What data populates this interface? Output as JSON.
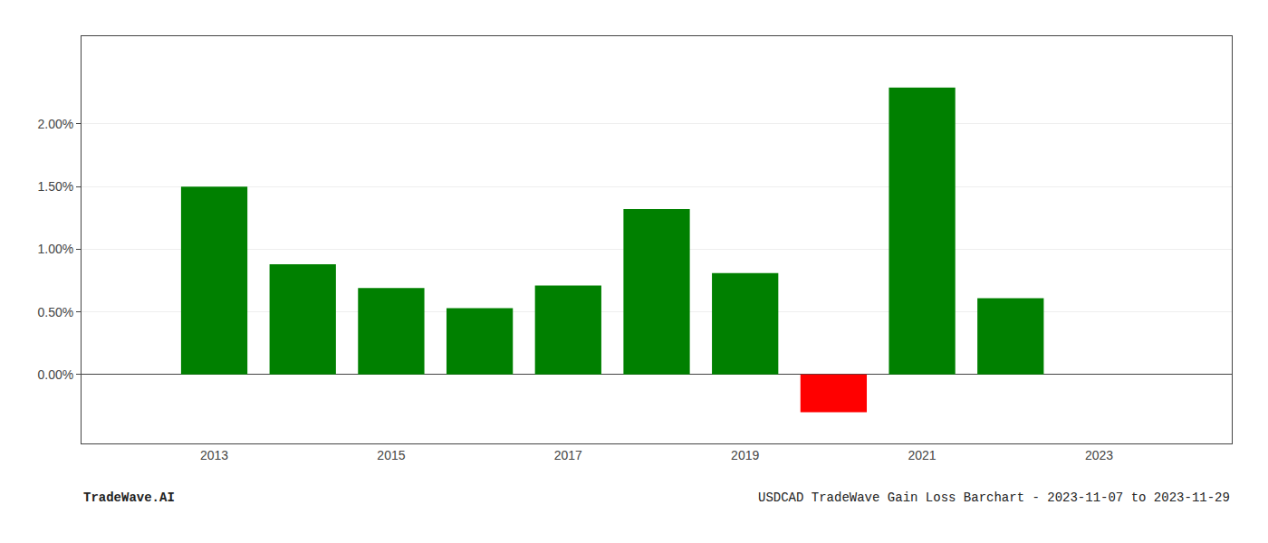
{
  "chart_data": {
    "type": "bar",
    "x": [
      2013,
      2014,
      2015,
      2016,
      2017,
      2018,
      2019,
      2020,
      2021,
      2022,
      2023
    ],
    "values": [
      0.015,
      0.0088,
      0.0069,
      0.0053,
      0.0071,
      0.0132,
      0.0081,
      -0.003,
      0.0229,
      0.0061,
      null
    ],
    "colors": [
      "#008000",
      "#008000",
      "#008000",
      "#008000",
      "#008000",
      "#008000",
      "#008000",
      "#ff0000",
      "#008000",
      "#008000",
      null
    ],
    "xlim": [
      2011.5,
      2024.5
    ],
    "xticks": [
      2013,
      2015,
      2017,
      2019,
      2021,
      2023
    ],
    "ylim": [
      -0.0055,
      0.027
    ],
    "yticks": [
      {
        "value": 0.0,
        "label": "0.00%"
      },
      {
        "value": 0.005,
        "label": "0.50%"
      },
      {
        "value": 0.01,
        "label": "1.00%"
      },
      {
        "value": 0.015,
        "label": "1.50%"
      },
      {
        "value": 0.02,
        "label": "2.00%"
      }
    ],
    "grid": true,
    "annotations": [
      "TradeWave.AI",
      "USDCAD TradeWave Gain Loss Barchart - 2023-11-07 to 2023-11-29"
    ]
  }
}
